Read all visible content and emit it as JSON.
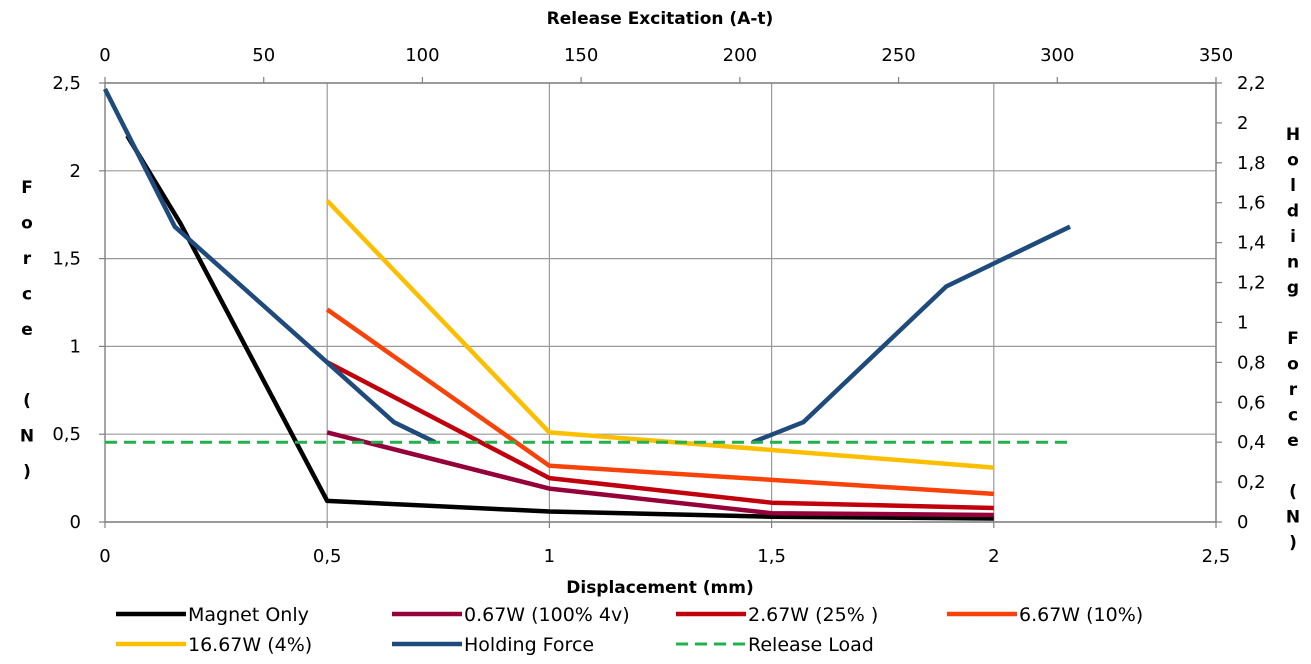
{
  "chart_data": {
    "type": "line",
    "xlabel": "Displacement (mm)",
    "x2label": "Release Excitation (A-t)",
    "ylabel": "Force (N)",
    "y2label": "Holding Force (N)",
    "xlim": [
      0,
      2.5
    ],
    "x2lim": [
      0,
      350
    ],
    "ylim": [
      0,
      2.5
    ],
    "y2lim": [
      0,
      2.2
    ],
    "x_ticks": [
      "0",
      "0,5",
      "1",
      "1,5",
      "2",
      "2,5"
    ],
    "x2_ticks": [
      "0",
      "50",
      "100",
      "150",
      "200",
      "250",
      "300",
      "350"
    ],
    "y_ticks": [
      "0",
      "0,5",
      "1",
      "1,5",
      "2",
      "2,5"
    ],
    "y2_ticks": [
      "0",
      "0,2",
      "0,4",
      "0,6",
      "0,8",
      "1",
      "1,2",
      "1,4",
      "1,6",
      "1,8",
      "2",
      "2,2"
    ],
    "grid": "vertical major gridlines and horizontal gridlines",
    "legend_position": "bottom",
    "series": [
      {
        "name": "Magnet Only",
        "color": "#000000",
        "style": "solid",
        "axis": "primary",
        "points": [
          [
            0.05,
            2.2
          ],
          [
            0.17,
            1.7
          ],
          [
            0.5,
            0.12
          ],
          [
            1,
            0.06
          ],
          [
            1.5,
            0.03
          ],
          [
            2,
            0.02
          ]
        ]
      },
      {
        "name": "0.67W (100% 4v)",
        "color": "#95003a",
        "style": "solid",
        "axis": "primary",
        "points": [
          [
            0.5,
            0.51
          ],
          [
            1,
            0.19
          ],
          [
            1.5,
            0.05
          ],
          [
            2,
            0.04
          ]
        ]
      },
      {
        "name": "2.67W (25% )",
        "color": "#c0000c",
        "style": "solid",
        "axis": "primary",
        "points": [
          [
            0.5,
            0.91
          ],
          [
            1,
            0.25
          ],
          [
            1.5,
            0.11
          ],
          [
            2,
            0.08
          ]
        ]
      },
      {
        "name": "6.67W (10%)",
        "color": "#f74209",
        "style": "solid",
        "axis": "primary",
        "points": [
          [
            0.5,
            1.21
          ],
          [
            1,
            0.32
          ],
          [
            2,
            0.16
          ]
        ]
      },
      {
        "name": "16.67W (4%)",
        "color": "#fcbf00",
        "style": "solid",
        "axis": "primary",
        "points": [
          [
            0.5,
            1.83
          ],
          [
            1,
            0.51
          ],
          [
            2,
            0.31
          ]
        ]
      },
      {
        "name": "Holding Force",
        "color": "#1e4a7c",
        "style": "solid",
        "axis": "secondary",
        "segments": [
          [
            [
              0,
              2.17
            ],
            [
              22,
              1.48
            ],
            [
              70,
              0.8
            ],
            [
              91,
              0.5
            ],
            [
              104,
              0.4
            ]
          ],
          [
            [
              204,
              0.4
            ],
            [
              220,
              0.5
            ],
            [
              265,
              1.18
            ],
            [
              304,
              1.48
            ]
          ]
        ]
      },
      {
        "name": "Release Load",
        "color": "#22b14c",
        "style": "dashed",
        "axis": "secondary",
        "points": [
          [
            0,
            0.4
          ],
          [
            304,
            0.4
          ]
        ]
      }
    ]
  }
}
